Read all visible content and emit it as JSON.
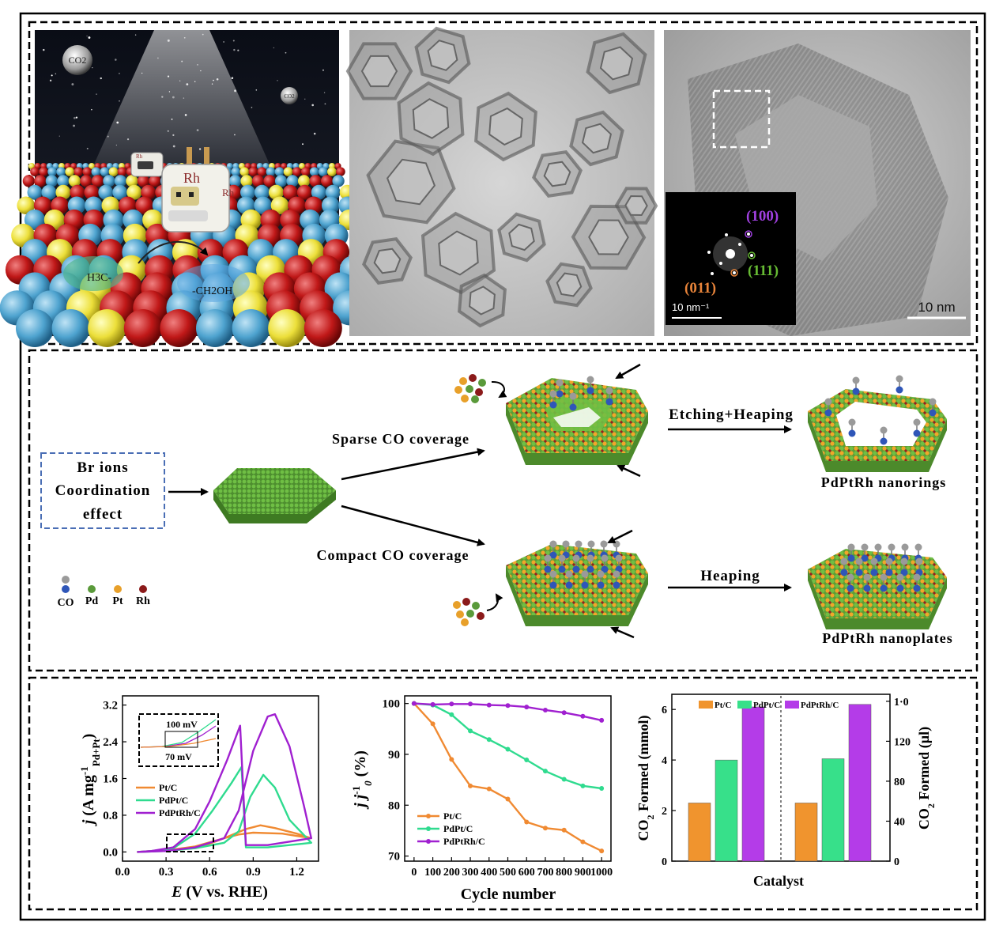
{
  "panel_a": {
    "illustration": {
      "labels": [
        "CO2",
        "CO2",
        "Rh",
        "Rh",
        "Rh",
        "H3C-",
        "-CH2OH"
      ]
    },
    "tem_overview": {},
    "hrtem": {
      "scale_bar": "10 nm",
      "fft_scale_bar": "10 nm⁻¹",
      "planes": [
        "(100)",
        "(111)",
        "(011)"
      ]
    }
  },
  "panel_b": {
    "box_lines": [
      "Br ions",
      "Coordination",
      "effect"
    ],
    "route_top": "Sparse CO coverage",
    "route_bottom": "Compact CO coverage",
    "step_top": "Etching+Heaping",
    "step_bottom": "Heaping",
    "product_top": "PdPtRh nanorings",
    "product_bottom": "PdPtRh nanoplates",
    "legend": [
      "CO",
      "Pd",
      "Pt",
      "Rh"
    ],
    "colors": {
      "pd": "#5a9a3a",
      "pt": "#e8a02a",
      "rh": "#8b1a1a",
      "co_c": "#9a9a9a",
      "co_o": "#2f56b8"
    }
  },
  "panel_c": {
    "cv": {
      "x_ticks": [
        "0.0",
        "0.3",
        "0.6",
        "0.9",
        "1.2"
      ],
      "y_ticks": [
        "0.0",
        "0.8",
        "1.6",
        "2.4",
        "3.2"
      ],
      "xlabel": "E (V vs. RHE)",
      "ylabel": "j (A mg-1Pd+Pt)",
      "legend": [
        "Pt/C",
        "PdPt/C",
        "PdPtRh/C"
      ],
      "inset": [
        "100 mV",
        "70 mV"
      ]
    },
    "stability": {
      "x_ticks": [
        "0",
        "100",
        "200",
        "300",
        "400",
        "500",
        "600",
        "700",
        "800",
        "900",
        "1000"
      ],
      "y_ticks": [
        "70",
        "80",
        "90",
        "100"
      ],
      "xlabel": "Cycle number",
      "ylabel": "j j0-1 (%)",
      "legend": [
        "Pt/C",
        "PdPt/C",
        "PdPtRh/C"
      ]
    },
    "co2": {
      "left_ticks": [
        "0",
        "2",
        "4",
        "6"
      ],
      "right_ticks": [
        "0",
        "40",
        "80",
        "120",
        "1·0"
      ],
      "left_label": "CO2 Formed (mmol)",
      "right_label": "CO2 Formed (µl)",
      "xlabel": "Catalyst",
      "legend": [
        "Pt/C",
        "PdPt/C",
        "PdPtRh/C"
      ]
    }
  },
  "chart_data": [
    {
      "type": "line",
      "xlabel": "E (V vs. RHE)",
      "ylabel": "j (A mg-1Pd+Pt)",
      "xlim": [
        0.0,
        1.35
      ],
      "ylim": [
        -0.2,
        3.4
      ],
      "series": [
        {
          "name": "Pt/C",
          "color": "#f08a32",
          "forward": [
            [
              0.1,
              0.0
            ],
            [
              0.3,
              0.03
            ],
            [
              0.5,
              0.12
            ],
            [
              0.7,
              0.3
            ],
            [
              0.85,
              0.5
            ],
            [
              0.95,
              0.58
            ],
            [
              1.05,
              0.52
            ],
            [
              1.2,
              0.4
            ],
            [
              1.3,
              0.3
            ]
          ],
          "backward": [
            [
              1.3,
              0.3
            ],
            [
              1.1,
              0.4
            ],
            [
              0.9,
              0.42
            ],
            [
              0.8,
              0.38
            ],
            [
              0.7,
              0.3
            ],
            [
              0.55,
              0.12
            ],
            [
              0.4,
              0.05
            ],
            [
              0.2,
              0.02
            ],
            [
              0.1,
              0.0
            ]
          ]
        },
        {
          "name": "PdPt/C",
          "color": "#2fdb8f",
          "forward": [
            [
              0.1,
              0.0
            ],
            [
              0.3,
              0.02
            ],
            [
              0.5,
              0.08
            ],
            [
              0.7,
              0.2
            ],
            [
              0.8,
              0.45
            ],
            [
              0.88,
              1.2
            ],
            [
              0.97,
              1.68
            ],
            [
              1.05,
              1.4
            ],
            [
              1.15,
              0.7
            ],
            [
              1.3,
              0.2
            ]
          ],
          "backward": [
            [
              1.3,
              0.2
            ],
            [
              1.0,
              0.1
            ],
            [
              0.85,
              0.1
            ],
            [
              0.82,
              1.85
            ],
            [
              0.75,
              1.5
            ],
            [
              0.62,
              0.9
            ],
            [
              0.5,
              0.4
            ],
            [
              0.35,
              0.08
            ],
            [
              0.2,
              0.02
            ],
            [
              0.1,
              0.0
            ]
          ]
        },
        {
          "name": "PdPtRh/C",
          "color": "#a020d0",
          "forward": [
            [
              0.1,
              0.0
            ],
            [
              0.3,
              0.02
            ],
            [
              0.5,
              0.1
            ],
            [
              0.7,
              0.3
            ],
            [
              0.8,
              0.9
            ],
            [
              0.9,
              2.2
            ],
            [
              1.0,
              2.95
            ],
            [
              1.05,
              3.0
            ],
            [
              1.15,
              2.3
            ],
            [
              1.25,
              1.0
            ],
            [
              1.3,
              0.3
            ]
          ],
          "backward": [
            [
              1.3,
              0.3
            ],
            [
              1.0,
              0.15
            ],
            [
              0.85,
              0.15
            ],
            [
              0.81,
              2.75
            ],
            [
              0.72,
              2.0
            ],
            [
              0.6,
              1.1
            ],
            [
              0.5,
              0.5
            ],
            [
              0.35,
              0.1
            ],
            [
              0.2,
              0.02
            ],
            [
              0.1,
              0.0
            ]
          ]
        }
      ]
    },
    {
      "type": "line",
      "xlabel": "Cycle number",
      "ylabel": "j j0-1 (%)",
      "xlim": [
        -50,
        1050
      ],
      "ylim": [
        69,
        101.5
      ],
      "x": [
        0,
        100,
        200,
        300,
        400,
        500,
        600,
        700,
        800,
        900,
        1000
      ],
      "series": [
        {
          "name": "Pt/C",
          "color": "#f08a32",
          "values": [
            100,
            96,
            89,
            83.8,
            83.2,
            81.2,
            76.7,
            75.5,
            75.1,
            72.8,
            71.0
          ]
        },
        {
          "name": "PdPt/C",
          "color": "#2fdb8f",
          "values": [
            100,
            99.7,
            97.8,
            94.6,
            92.9,
            91.0,
            88.9,
            86.7,
            85.1,
            83.8,
            83.3
          ]
        },
        {
          "name": "PdPtRh/C",
          "color": "#a020d0",
          "values": [
            100,
            99.8,
            99.9,
            99.9,
            99.7,
            99.6,
            99.3,
            98.7,
            98.2,
            97.5,
            96.7
          ]
        }
      ]
    },
    {
      "type": "bar",
      "xlabel": "Catalyst",
      "ylabel": "CO2 Formed (mmol)",
      "ylim": [
        0,
        6.6
      ],
      "groups": [
        "left",
        "right"
      ],
      "series": [
        {
          "name": "Pt/C",
          "color": "#f0942e",
          "values": [
            2.3,
            2.3
          ]
        },
        {
          "name": "PdPt/C",
          "color": "#37e08a",
          "values": [
            4.0,
            4.05
          ]
        },
        {
          "name": "PdPtRh/C",
          "color": "#b43ce8",
          "values": [
            6.1,
            6.2
          ]
        }
      ]
    }
  ]
}
